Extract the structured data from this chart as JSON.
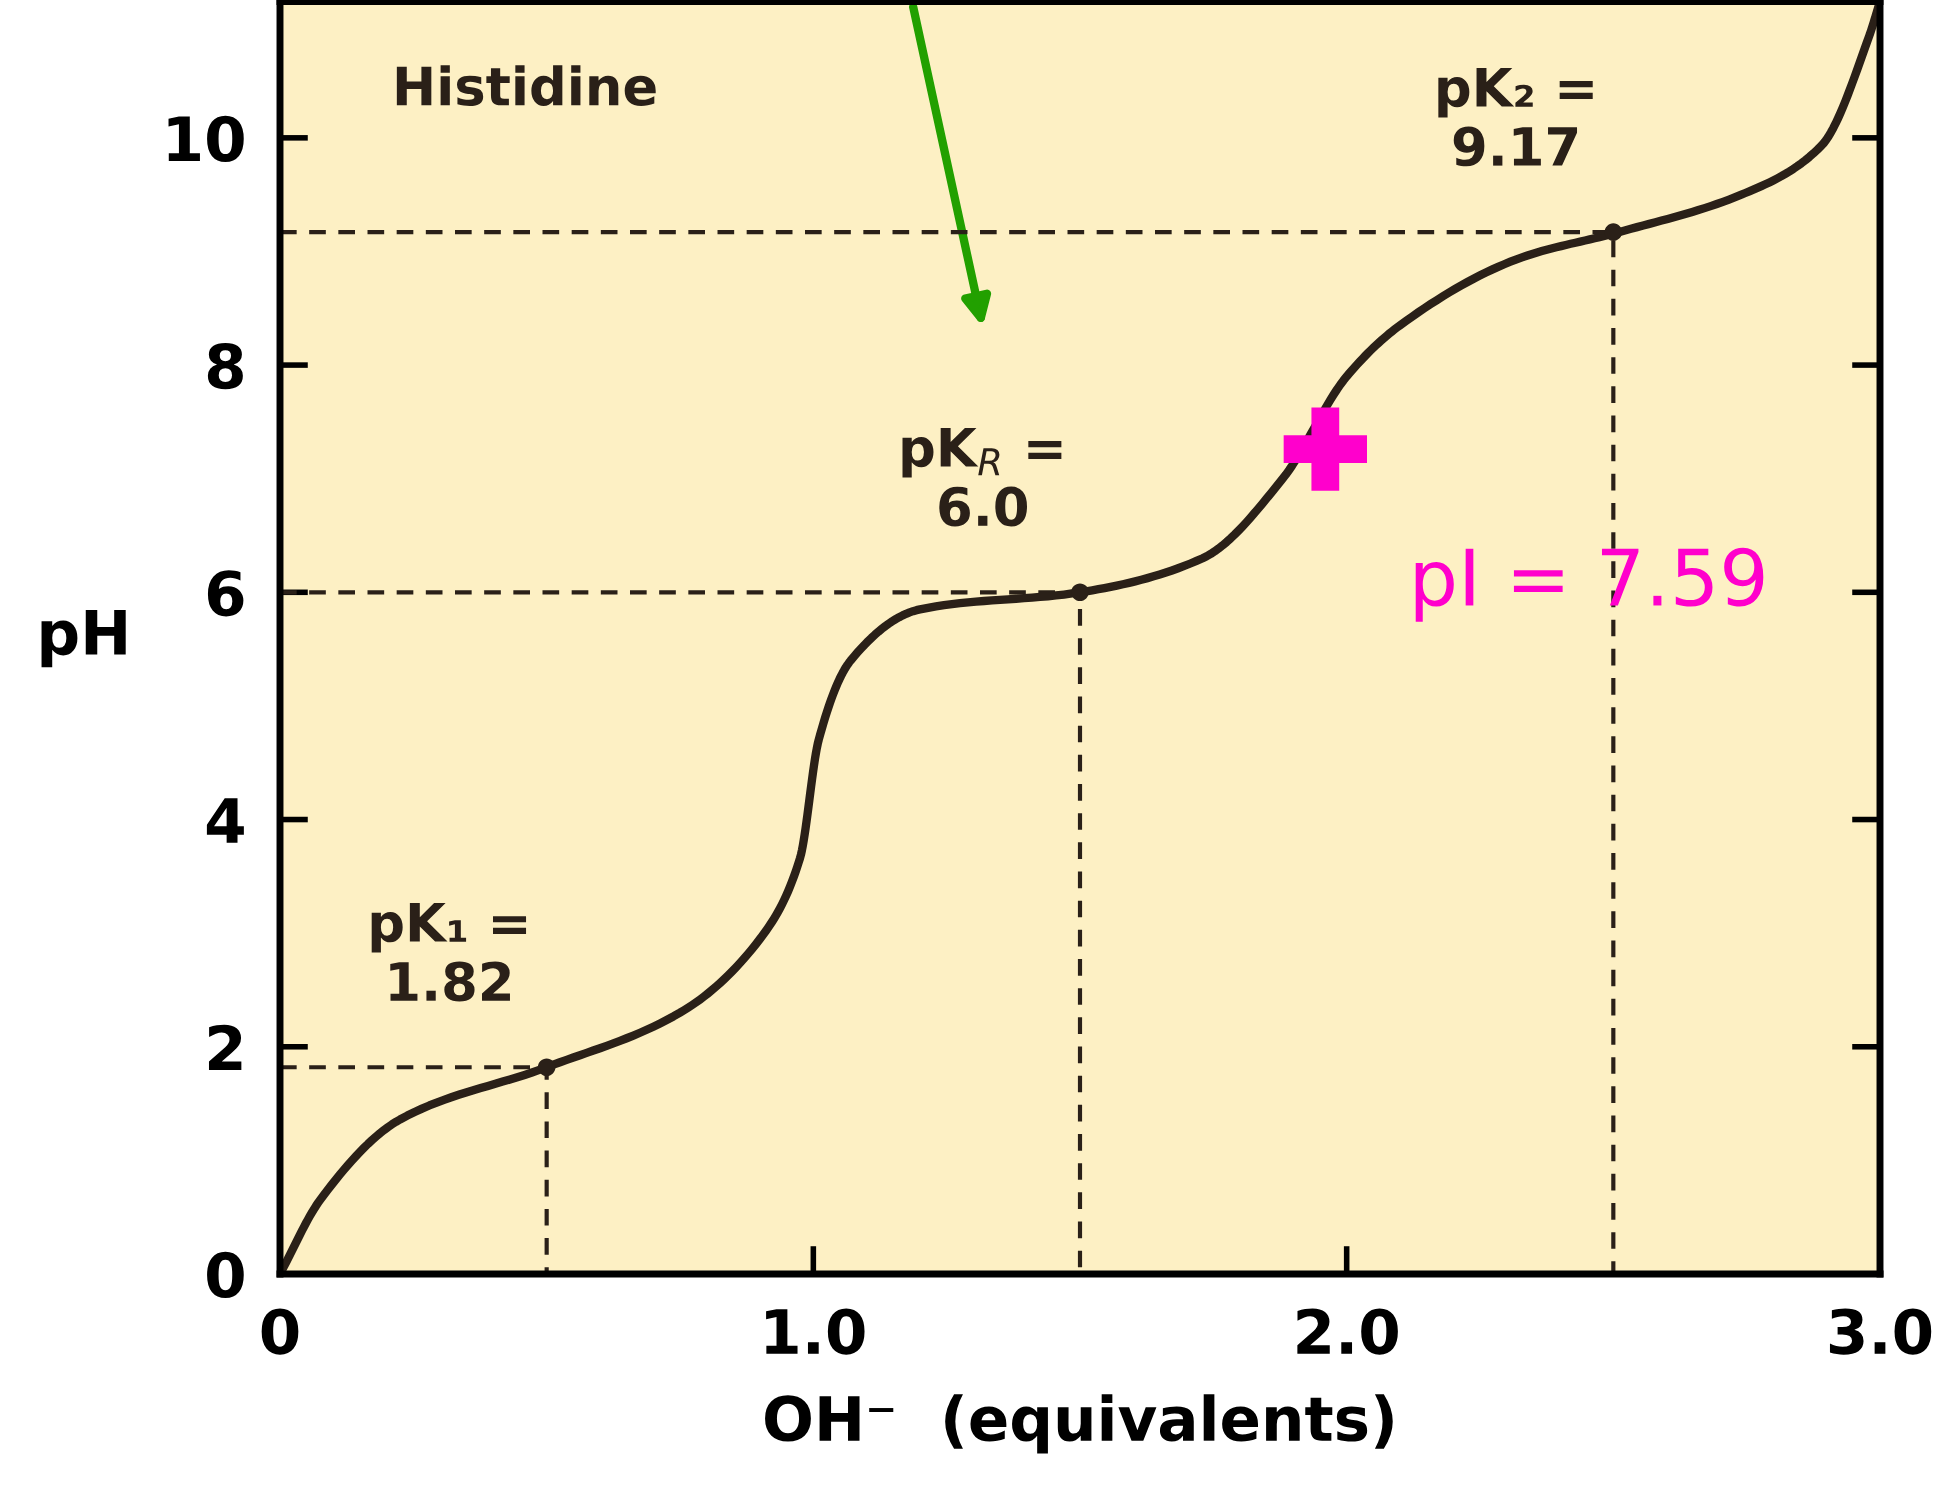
{
  "chart_data": {
    "type": "line",
    "title": "Histidine",
    "xlabel": "OH⁻  (equivalents)",
    "ylabel": "pH",
    "xlim": [
      0,
      3.0
    ],
    "ylim": [
      0,
      11.2
    ],
    "xticks": [
      0,
      {
        "value": 1,
        "label": "1.0"
      },
      {
        "value": 2,
        "label": "2.0"
      },
      {
        "value": 3,
        "label": "3.0"
      }
    ],
    "yticks": [
      0,
      2,
      4,
      6,
      8,
      10
    ],
    "grid": false,
    "series": [
      {
        "color": "#2a2018",
        "line_style": "solid",
        "x": [
          0,
          0.075,
          0.225,
          0.5,
          0.75,
          0.9,
          0.975,
          1.01,
          1.07,
          1.2,
          1.5,
          1.73,
          1.88,
          2.0,
          2.1,
          2.33,
          2.51,
          2.74,
          2.89,
          2.98,
          3.0
        ],
        "values": [
          0,
          0.65,
          1.36,
          1.82,
          2.3,
          2.95,
          3.66,
          4.7,
          5.4,
          5.85,
          6.0,
          6.3,
          7.0,
          7.9,
          8.35,
          8.95,
          9.17,
          9.5,
          9.93,
          10.9,
          11.2
        ]
      },
      {
        "type": "line",
        "color": "#2a2018",
        "line_style": "dashed",
        "x": [
          0,
          0.5,
          0.5
        ],
        "values": [
          1.82,
          1.82,
          0
        ]
      },
      {
        "type": "line",
        "color": "#2a2018",
        "line_style": "dashed",
        "x": [
          0,
          1.5,
          1.5
        ],
        "values": [
          6.0,
          6.0,
          0
        ]
      },
      {
        "type": "line",
        "color": "#2a2018",
        "line_style": "dashed",
        "x": [
          0,
          2.5,
          2.5
        ],
        "values": [
          9.17,
          9.17,
          0
        ]
      },
      {
        "type": "scatter",
        "color": "#2a2018",
        "marker": "circle",
        "x": [
          0.5,
          1.5,
          2.5
        ],
        "values": [
          1.82,
          6.0,
          9.17
        ]
      },
      {
        "type": "scatter",
        "color": "#ff00cc",
        "marker": "cross",
        "x": [
          1.96
        ],
        "values": [
          7.26
        ]
      }
    ],
    "annotations": [
      {
        "text": "pK₁ =\n1.82",
        "x": 0.5,
        "y": 1.82
      },
      {
        "text": "pK$_{R}$ =\n6.0",
        "x": 1.5,
        "y": 6.0
      },
      {
        "text": "pK₂ =\n9.17",
        "x": 2.5,
        "y": 9.17
      },
      {
        "text": "pI = 7.59",
        "x": 1.96,
        "y": 7.26
      }
    ]
  }
}
